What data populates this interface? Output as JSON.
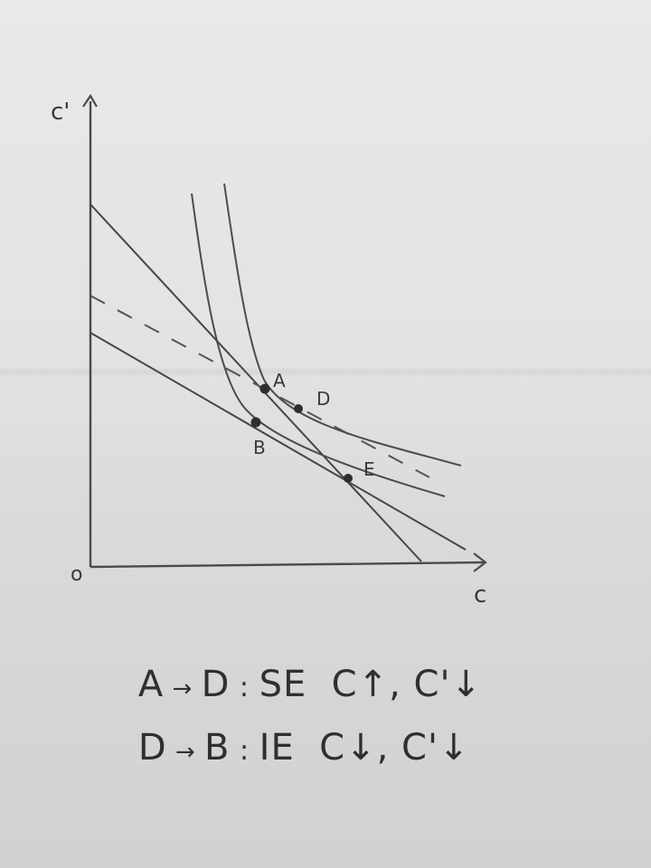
{
  "axes": {
    "y_label": "c'",
    "x_label": "c",
    "origin_label": "o"
  },
  "points": {
    "A": "A",
    "B": "B",
    "D": "D",
    "E": "E"
  },
  "notes": [
    {
      "from": "A",
      "to": "D",
      "effect": "SE",
      "changes": "C↑, C'↓"
    },
    {
      "from": "D",
      "to": "B",
      "effect": "IE",
      "changes": "C↓, C'↓"
    }
  ]
}
